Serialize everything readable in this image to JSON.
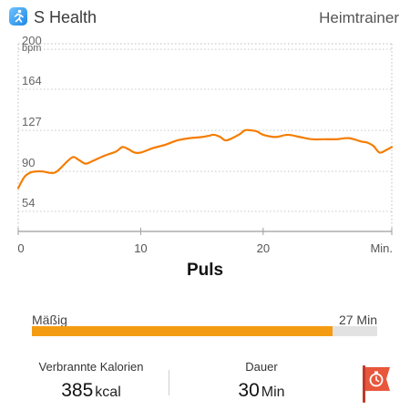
{
  "header": {
    "app_name": "S Health",
    "exercise_type": "Heimtrainer"
  },
  "icons": {
    "app": "s-health-running-figure-icon",
    "action": "flag-stopwatch-icon"
  },
  "chart_data": {
    "type": "line",
    "title": "Puls",
    "ylabel": "bpm",
    "xlabel": "Min.",
    "ylim": [
      36,
      205
    ],
    "y_ticks": [
      200,
      164,
      127,
      90,
      54
    ],
    "xlim": [
      0,
      30.5
    ],
    "x_ticks": [
      0,
      10,
      20
    ],
    "x_tick_labels": [
      "0",
      "10",
      "20",
      "Min."
    ],
    "grid": true,
    "line_color": "#f57c00",
    "series": [
      {
        "x": [
          0,
          0.5,
          1,
          1.5,
          2,
          3,
          4,
          4.5,
          5,
          5.5,
          6,
          7,
          8,
          8.5,
          9,
          9.5,
          10,
          11,
          12,
          13,
          14,
          15,
          15.5,
          16,
          16.5,
          17,
          18,
          18.5,
          19,
          19.5,
          20,
          21,
          22,
          23,
          24,
          25,
          26,
          27,
          28,
          28.5,
          29,
          29.5,
          30,
          30.5
        ],
        "y": [
          75,
          85,
          89,
          90,
          90,
          89,
          99,
          103,
          100,
          97,
          99,
          104,
          108,
          112,
          110,
          107,
          107,
          111,
          114,
          118,
          120,
          121,
          122,
          123,
          121,
          118,
          123,
          127,
          127,
          126,
          123,
          121,
          123,
          121,
          119,
          119,
          119,
          120,
          117,
          116,
          113,
          107,
          109,
          112
        ]
      }
    ]
  },
  "intensity": {
    "label": "Mäßig",
    "duration": "27 Min",
    "fraction": 0.87
  },
  "stats": {
    "calories": {
      "label": "Verbrannte Kalorien",
      "value": "385",
      "unit": "kcal"
    },
    "duration": {
      "label": "Dauer",
      "value": "30",
      "unit": "Min"
    }
  },
  "colors": {
    "accent": "#f39c12",
    "line": "#f57c00",
    "flag_button": "#e8573c"
  }
}
